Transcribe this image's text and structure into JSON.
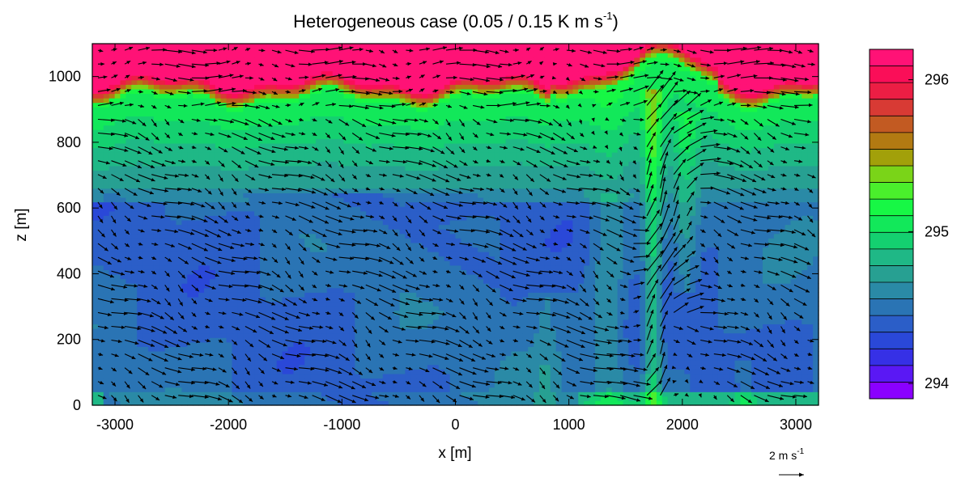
{
  "chart_data": {
    "type": "heatmap",
    "title": "Heterogeneous case (0.05 / 0.15 K m s",
    "title_sup": "-1",
    "title_close": ")",
    "xlabel": "x [m]",
    "ylabel": "z [m]",
    "xlim": [
      -3200,
      3200
    ],
    "ylim": [
      0,
      1100
    ],
    "xticks": [
      -3000,
      -2000,
      -1000,
      0,
      1000,
      2000,
      3000
    ],
    "yticks": [
      0,
      200,
      400,
      600,
      800,
      1000
    ],
    "grid": false,
    "field": "potential temperature (K) with wind vectors",
    "colorbar": {
      "range": [
        293.9,
        296.2
      ],
      "ticks": [
        294,
        295,
        296
      ],
      "levels": 21,
      "colors": [
        "#8a00ff",
        "#5a18f4",
        "#3630e6",
        "#2a48d8",
        "#2b5ec8",
        "#2a74b4",
        "#2a8aa6",
        "#27a092",
        "#1fb886",
        "#14d070",
        "#12e85a",
        "#17f745",
        "#4aef2c",
        "#7ad418",
        "#a2a00a",
        "#b27a12",
        "#c25a22",
        "#d83a34",
        "#ec1e44",
        "#fa0e58",
        "#ff1276"
      ]
    },
    "reference_vector": {
      "label": "2 m s",
      "sup": "-1",
      "magnitude": 2
    },
    "features": [
      {
        "x": 1750,
        "z_top": 1000,
        "type": "updraft plume"
      },
      {
        "x": 2000,
        "z_top": 1010,
        "type": "updraft plume"
      },
      {
        "x": 1450,
        "z_top": 980,
        "type": "updraft plume"
      }
    ]
  }
}
